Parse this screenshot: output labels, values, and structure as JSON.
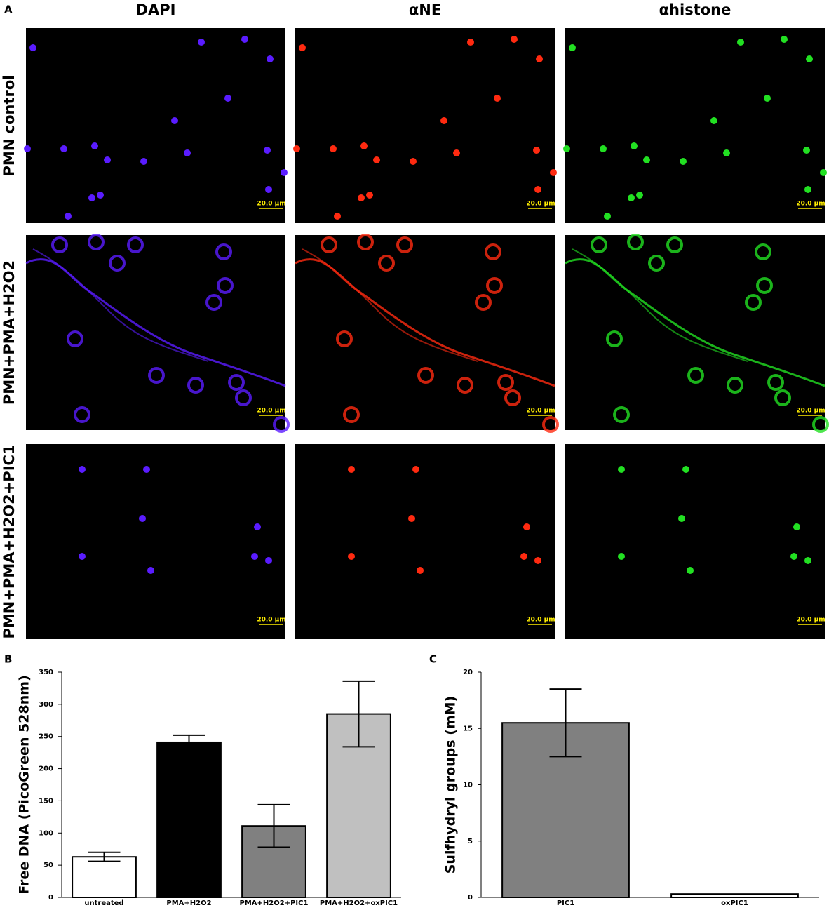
{
  "panel_a": {
    "label": "A",
    "columns": [
      "DAPI",
      "αNE",
      "αhistone"
    ],
    "rows": [
      "PMN control",
      "PMN+PMA+H2O2",
      "PMN+PMA+H2O2+PIC1"
    ],
    "scale_bar": "20.0 µm"
  },
  "chart_data": [
    {
      "type": "bar",
      "label": "B",
      "y_label": "Free DNA (PicoGreen 528nm)",
      "categories": [
        "untreated",
        "PMA+H2O2",
        "PMA+H2O2+PIC1",
        "PMA+H2O2+oxPIC1"
      ],
      "values": [
        63,
        241,
        111,
        285
      ],
      "errors": [
        7,
        11,
        33,
        51
      ],
      "colors": [
        "#ffffff",
        "#000000",
        "#808080",
        "#c0c0c0"
      ],
      "ylim": [
        0,
        350
      ],
      "yticks": [
        0,
        50,
        100,
        150,
        200,
        250,
        300,
        350
      ]
    },
    {
      "type": "bar",
      "label": "C",
      "y_label": "Sulfhydryl groups (mM)",
      "categories": [
        "PIC1",
        "oxPIC1"
      ],
      "values": [
        15.5,
        0.3
      ],
      "errors": [
        3,
        null
      ],
      "colors": [
        "#808080",
        "#ffffff"
      ],
      "ylim": [
        0,
        20
      ],
      "yticks": [
        0,
        5,
        10,
        15,
        20
      ]
    }
  ]
}
